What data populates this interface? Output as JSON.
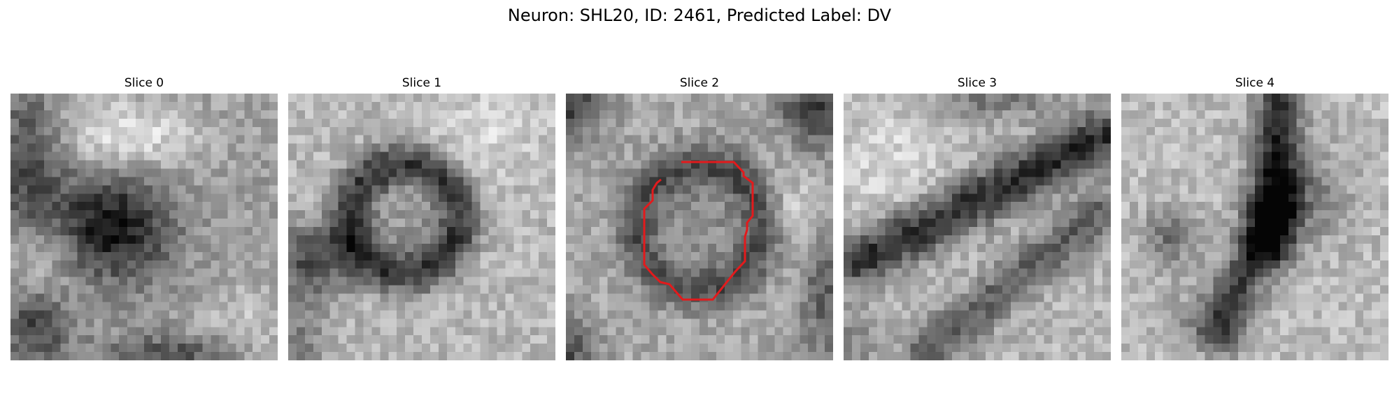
{
  "figure": {
    "title": "Neuron: SHL20, ID: 2461, Predicted Label: DV"
  },
  "slices": [
    {
      "title": "Slice 0",
      "pattern": "blob-dark-center",
      "highlighted": false
    },
    {
      "title": "Slice 1",
      "pattern": "ring-dark-left",
      "highlighted": false
    },
    {
      "title": "Slice 2",
      "pattern": "ring-soma",
      "highlighted": true
    },
    {
      "title": "Slice 3",
      "pattern": "diagonal-band",
      "highlighted": false
    },
    {
      "title": "Slice 4",
      "pattern": "vertical-band",
      "highlighted": false
    }
  ],
  "highlight": {
    "color": "#e31a1c",
    "shape": "segmentation-outline"
  },
  "colormap": "grayscale"
}
